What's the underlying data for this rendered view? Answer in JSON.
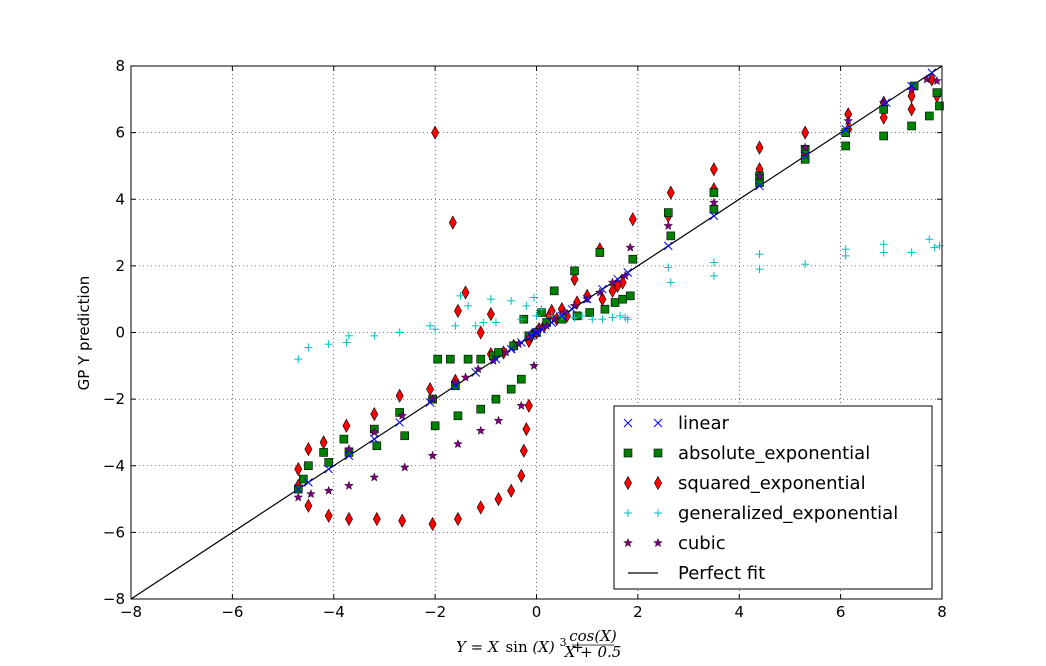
{
  "chart_data": {
    "type": "scatter",
    "title": "",
    "xlabel": "Y = X sin(X)³ + cos(X)/(X + 0.5)",
    "xlabel_parts": {
      "lhs": "Y = X",
      "sin": "sin",
      "arg": "(X)",
      "pow": "3",
      "plus": " + ",
      "numerator": "cos(X)",
      "denominator": "X + 0.5"
    },
    "ylabel": "GP Y prediction",
    "xlim": [
      -8,
      8
    ],
    "ylim": [
      -8,
      8
    ],
    "xticks": [
      -8,
      -6,
      -4,
      -2,
      0,
      2,
      4,
      6,
      8
    ],
    "yticks": [
      -8,
      -6,
      -4,
      -2,
      0,
      2,
      4,
      6,
      8
    ],
    "xtick_labels": [
      "−8",
      "−6",
      "−4",
      "−2",
      "0",
      "2",
      "4",
      "6",
      "8"
    ],
    "ytick_labels": [
      "−8",
      "−6",
      "−4",
      "−2",
      "0",
      "2",
      "4",
      "6",
      "8"
    ],
    "grid": true,
    "legend_position": "lower-right",
    "series": [
      {
        "name": "linear",
        "marker": "x",
        "color": "#0000ff",
        "points": [
          [
            -4.7,
            -4.7
          ],
          [
            -4.5,
            -4.5
          ],
          [
            -4.1,
            -4.1
          ],
          [
            -3.7,
            -3.7
          ],
          [
            -3.2,
            -3.2
          ],
          [
            -2.7,
            -2.7
          ],
          [
            -2.1,
            -2.1
          ],
          [
            -1.6,
            -1.6
          ],
          [
            -1.2,
            -1.2
          ],
          [
            -0.8,
            -0.8
          ],
          [
            -0.5,
            -0.5
          ],
          [
            -0.3,
            -0.3
          ],
          [
            -0.1,
            -0.1
          ],
          [
            0.0,
            0.0
          ],
          [
            0.1,
            0.1
          ],
          [
            0.3,
            0.3
          ],
          [
            0.5,
            0.5
          ],
          [
            0.7,
            0.7
          ],
          [
            1.0,
            1.0
          ],
          [
            1.3,
            1.3
          ],
          [
            1.6,
            1.6
          ],
          [
            1.8,
            1.8
          ],
          [
            2.6,
            2.6
          ],
          [
            3.5,
            3.5
          ],
          [
            4.4,
            4.4
          ],
          [
            5.3,
            5.3
          ],
          [
            6.1,
            6.1
          ],
          [
            6.9,
            6.9
          ],
          [
            7.4,
            7.4
          ],
          [
            7.8,
            7.8
          ]
        ]
      },
      {
        "name": "absolute_exponential",
        "marker": "square",
        "color": "#008000",
        "points": [
          [
            -4.7,
            -4.7
          ],
          [
            -4.6,
            -4.4
          ],
          [
            -4.5,
            -4.0
          ],
          [
            -4.2,
            -3.6
          ],
          [
            -4.1,
            -3.9
          ],
          [
            -3.8,
            -3.2
          ],
          [
            -3.7,
            -3.6
          ],
          [
            -3.2,
            -2.9
          ],
          [
            -3.15,
            -3.4
          ],
          [
            -2.7,
            -2.4
          ],
          [
            -2.6,
            -3.1
          ],
          [
            -2.05,
            -2.0
          ],
          [
            -2.0,
            -2.8
          ],
          [
            -1.95,
            -0.8
          ],
          [
            -1.7,
            -0.8
          ],
          [
            -1.6,
            -1.6
          ],
          [
            -1.55,
            -2.5
          ],
          [
            -1.35,
            -0.8
          ],
          [
            -1.1,
            -0.8
          ],
          [
            -1.1,
            -2.3
          ],
          [
            -0.85,
            -0.7
          ],
          [
            -0.8,
            -2.0
          ],
          [
            -0.75,
            -0.6
          ],
          [
            -0.5,
            -1.7
          ],
          [
            -0.45,
            -0.4
          ],
          [
            -0.3,
            -1.4
          ],
          [
            -0.25,
            0.4
          ],
          [
            -0.15,
            -0.1
          ],
          [
            0.0,
            0.0
          ],
          [
            0.1,
            0.6
          ],
          [
            0.2,
            0.3
          ],
          [
            0.35,
            1.25
          ],
          [
            0.5,
            0.4
          ],
          [
            0.75,
            1.85
          ],
          [
            0.8,
            0.5
          ],
          [
            1.05,
            0.6
          ],
          [
            1.25,
            2.4
          ],
          [
            1.35,
            0.7
          ],
          [
            1.55,
            0.9
          ],
          [
            1.7,
            1.0
          ],
          [
            1.85,
            1.1
          ],
          [
            1.9,
            2.2
          ],
          [
            2.6,
            3.6
          ],
          [
            2.65,
            2.9
          ],
          [
            3.5,
            3.7
          ],
          [
            3.5,
            4.2
          ],
          [
            4.4,
            4.5
          ],
          [
            4.4,
            4.7
          ],
          [
            5.3,
            5.2
          ],
          [
            5.3,
            5.5
          ],
          [
            6.1,
            5.6
          ],
          [
            6.1,
            6.0
          ],
          [
            6.85,
            5.9
          ],
          [
            6.85,
            6.7
          ],
          [
            7.4,
            6.2
          ],
          [
            7.45,
            7.4
          ],
          [
            7.75,
            6.5
          ],
          [
            7.9,
            7.2
          ],
          [
            7.95,
            6.8
          ]
        ]
      },
      {
        "name": "squared_exponential",
        "marker": "diamond",
        "color": "#ff0000",
        "points": [
          [
            -4.7,
            -4.6
          ],
          [
            -4.7,
            -4.1
          ],
          [
            -4.5,
            -3.5
          ],
          [
            -4.5,
            -5.2
          ],
          [
            -4.2,
            -3.3
          ],
          [
            -4.1,
            -5.5
          ],
          [
            -3.75,
            -2.8
          ],
          [
            -3.7,
            -5.6
          ],
          [
            -3.2,
            -2.45
          ],
          [
            -3.15,
            -5.6
          ],
          [
            -2.7,
            -1.9
          ],
          [
            -2.65,
            -5.65
          ],
          [
            -2.1,
            -1.7
          ],
          [
            -2.05,
            -5.75
          ],
          [
            -2.0,
            6.0
          ],
          [
            -1.65,
            3.3
          ],
          [
            -1.6,
            -1.45
          ],
          [
            -1.55,
            -5.6
          ],
          [
            -1.4,
            1.2
          ],
          [
            -1.55,
            0.65
          ],
          [
            -1.1,
            -5.25
          ],
          [
            -1.1,
            0.0
          ],
          [
            -0.9,
            0.55
          ],
          [
            -0.9,
            -0.65
          ],
          [
            -0.75,
            -5.0
          ],
          [
            -0.65,
            -0.6
          ],
          [
            -0.5,
            -4.75
          ],
          [
            -0.45,
            -0.4
          ],
          [
            -0.3,
            -4.3
          ],
          [
            -0.25,
            -3.55
          ],
          [
            -0.2,
            -2.9
          ],
          [
            -0.15,
            -2.2
          ],
          [
            -0.15,
            -0.25
          ],
          [
            -0.1,
            -0.1
          ],
          [
            0.0,
            0.0
          ],
          [
            0.05,
            0.1
          ],
          [
            0.15,
            0.2
          ],
          [
            0.25,
            0.5
          ],
          [
            0.3,
            0.65
          ],
          [
            0.4,
            0.4
          ],
          [
            0.5,
            0.7
          ],
          [
            0.6,
            0.5
          ],
          [
            0.75,
            1.6
          ],
          [
            0.8,
            0.9
          ],
          [
            1.0,
            1.1
          ],
          [
            1.25,
            2.5
          ],
          [
            1.3,
            1.0
          ],
          [
            1.5,
            1.25
          ],
          [
            1.6,
            1.4
          ],
          [
            1.7,
            1.5
          ],
          [
            1.9,
            3.4
          ],
          [
            2.65,
            4.2
          ],
          [
            2.6,
            3.5
          ],
          [
            3.5,
            4.9
          ],
          [
            3.5,
            4.3
          ],
          [
            4.4,
            5.55
          ],
          [
            4.4,
            4.9
          ],
          [
            5.3,
            6.0
          ],
          [
            5.3,
            5.35
          ],
          [
            6.15,
            6.55
          ],
          [
            6.15,
            6.1
          ],
          [
            6.85,
            6.45
          ],
          [
            6.85,
            6.9
          ],
          [
            7.4,
            7.1
          ],
          [
            7.4,
            6.7
          ],
          [
            7.8,
            7.6
          ],
          [
            7.9,
            7.1
          ]
        ]
      },
      {
        "name": "generalized_exponential",
        "marker": "plus",
        "color": "#00bfbf",
        "points": [
          [
            -4.7,
            -0.8
          ],
          [
            -4.5,
            -0.45
          ],
          [
            -4.1,
            -0.35
          ],
          [
            -3.75,
            -0.3
          ],
          [
            -3.7,
            -0.1
          ],
          [
            -3.2,
            -0.1
          ],
          [
            -2.7,
            0.0
          ],
          [
            -2.1,
            0.2
          ],
          [
            -2.0,
            0.1
          ],
          [
            -1.6,
            0.2
          ],
          [
            -1.5,
            1.1
          ],
          [
            -1.35,
            0.8
          ],
          [
            -1.2,
            0.2
          ],
          [
            -1.05,
            0.3
          ],
          [
            -0.9,
            1.0
          ],
          [
            -0.8,
            0.3
          ],
          [
            -0.5,
            0.95
          ],
          [
            -0.3,
            0.4
          ],
          [
            -0.2,
            0.8
          ],
          [
            -0.05,
            1.05
          ],
          [
            0.0,
            0.5
          ],
          [
            0.1,
            0.7
          ],
          [
            0.3,
            0.5
          ],
          [
            0.5,
            0.5
          ],
          [
            0.75,
            0.45
          ],
          [
            0.9,
            0.5
          ],
          [
            1.1,
            0.4
          ],
          [
            1.3,
            0.4
          ],
          [
            1.5,
            0.45
          ],
          [
            1.65,
            0.5
          ],
          [
            1.75,
            0.45
          ],
          [
            1.8,
            0.4
          ],
          [
            2.6,
            1.95
          ],
          [
            2.65,
            1.5
          ],
          [
            3.5,
            2.1
          ],
          [
            3.5,
            1.7
          ],
          [
            4.4,
            2.35
          ],
          [
            4.4,
            1.9
          ],
          [
            5.3,
            2.05
          ],
          [
            6.1,
            2.3
          ],
          [
            6.1,
            2.5
          ],
          [
            6.85,
            2.65
          ],
          [
            6.85,
            2.4
          ],
          [
            7.4,
            2.4
          ],
          [
            7.75,
            2.8
          ],
          [
            7.85,
            2.55
          ],
          [
            7.95,
            2.6
          ]
        ]
      },
      {
        "name": "cubic",
        "marker": "star",
        "color": "#800080",
        "points": [
          [
            -4.7,
            -4.95
          ],
          [
            -4.45,
            -4.85
          ],
          [
            -4.1,
            -4.75
          ],
          [
            -3.7,
            -4.6
          ],
          [
            -3.2,
            -4.35
          ],
          [
            -2.6,
            -4.05
          ],
          [
            -2.05,
            -3.7
          ],
          [
            -1.55,
            -3.35
          ],
          [
            -1.1,
            -2.95
          ],
          [
            -0.75,
            -2.65
          ],
          [
            -0.3,
            -2.2
          ],
          [
            -0.05,
            -1.0
          ],
          [
            -3.7,
            -3.5
          ],
          [
            -3.2,
            -3.0
          ],
          [
            -2.65,
            -2.5
          ],
          [
            -2.05,
            -2.0
          ],
          [
            -1.6,
            -1.5
          ],
          [
            -1.4,
            -1.35
          ],
          [
            -1.15,
            -1.1
          ],
          [
            -0.85,
            -0.85
          ],
          [
            -0.6,
            -0.6
          ],
          [
            -0.35,
            -0.35
          ],
          [
            -0.15,
            -0.15
          ],
          [
            0.0,
            0.0
          ],
          [
            0.2,
            0.2
          ],
          [
            0.35,
            0.4
          ],
          [
            0.55,
            0.6
          ],
          [
            0.75,
            0.8
          ],
          [
            1.0,
            1.0
          ],
          [
            1.25,
            1.2
          ],
          [
            1.5,
            1.5
          ],
          [
            1.75,
            1.7
          ],
          [
            1.85,
            2.55
          ],
          [
            2.6,
            3.2
          ],
          [
            3.5,
            3.9
          ],
          [
            4.4,
            4.7
          ],
          [
            5.3,
            5.55
          ],
          [
            6.15,
            6.35
          ],
          [
            6.85,
            6.9
          ],
          [
            7.4,
            7.3
          ],
          [
            7.7,
            7.6
          ],
          [
            7.9,
            7.55
          ]
        ]
      },
      {
        "name": "Perfect fit",
        "marker": "line",
        "color": "#000000",
        "points": [
          [
            -8,
            -8
          ],
          [
            8,
            8
          ]
        ]
      }
    ]
  }
}
